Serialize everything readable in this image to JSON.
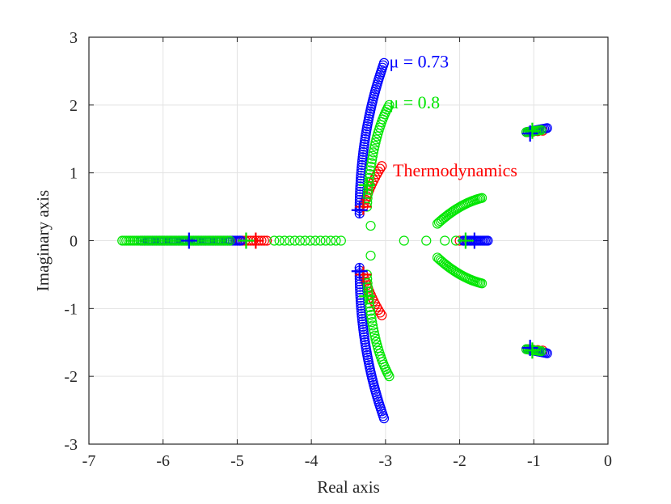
{
  "chart_data": {
    "type": "scatter",
    "xlabel": "Real axis",
    "ylabel": "Imaginary axis",
    "xlim": [
      -7,
      0
    ],
    "ylim": [
      -3,
      3
    ],
    "xticks": [
      "-7",
      "-6",
      "-5",
      "-4",
      "-3",
      "-2",
      "-1",
      "0"
    ],
    "yticks": [
      "3",
      "2",
      "1",
      "0",
      "-1",
      "-2",
      "-3"
    ],
    "grid": true,
    "annotations": [
      {
        "text": "μ = 0.73",
        "color": "#0000ff"
      },
      {
        "text": "μ = 0.8",
        "color": "#00e600"
      },
      {
        "text": "Thermodynamics",
        "color": "#ff0000"
      }
    ],
    "series": [
      {
        "color": "#ff0000",
        "marker": "circle",
        "branches": [
          {
            "kind": "line",
            "from": [
              -5.0,
              0
            ],
            "to": [
              -4.6,
              0
            ],
            "n": 12
          },
          {
            "kind": "arc",
            "from": [
              -3.3,
              0.5
            ],
            "mid": [
              -3.2,
              0.85
            ],
            "to": [
              -3.05,
              1.1
            ],
            "n": 14
          },
          {
            "kind": "arc",
            "from": [
              -3.3,
              -0.5
            ],
            "mid": [
              -3.2,
              -0.85
            ],
            "to": [
              -3.05,
              -1.1
            ],
            "n": 14
          },
          {
            "kind": "line",
            "from": [
              -2.0,
              0
            ],
            "to": [
              -1.85,
              0
            ],
            "n": 4
          },
          {
            "kind": "line",
            "from": [
              -1.08,
              1.6
            ],
            "to": [
              -0.88,
              1.62
            ],
            "n": 4
          },
          {
            "kind": "line",
            "from": [
              -1.08,
              -1.6
            ],
            "to": [
              -0.88,
              -1.62
            ],
            "n": 4
          }
        ]
      },
      {
        "color": "#0000ff",
        "marker": "circle",
        "branches": [
          {
            "kind": "line",
            "from": [
              -6.3,
              0
            ],
            "to": [
              -4.95,
              0
            ],
            "n": 60
          },
          {
            "kind": "arc",
            "from": [
              -3.35,
              0.4
            ],
            "mid": [
              -3.35,
              1.6
            ],
            "to": [
              -3.02,
              2.62
            ],
            "n": 60
          },
          {
            "kind": "arc",
            "from": [
              -3.35,
              -0.4
            ],
            "mid": [
              -3.35,
              -1.6
            ],
            "to": [
              -3.02,
              -2.62
            ],
            "n": 60
          },
          {
            "kind": "line",
            "from": [
              -1.95,
              0
            ],
            "to": [
              -1.62,
              0
            ],
            "n": 18
          },
          {
            "kind": "line",
            "from": [
              -1.1,
              1.6
            ],
            "to": [
              -0.82,
              1.66
            ],
            "n": 15
          },
          {
            "kind": "line",
            "from": [
              -1.1,
              -1.6
            ],
            "to": [
              -0.82,
              -1.66
            ],
            "n": 15
          }
        ]
      },
      {
        "color": "#00e600",
        "marker": "circle",
        "branches": [
          {
            "kind": "line",
            "from": [
              -6.55,
              0
            ],
            "to": [
              -5.1,
              0
            ],
            "n": 55
          },
          {
            "kind": "line",
            "from": [
              -4.5,
              0
            ],
            "to": [
              -3.6,
              0
            ],
            "n": 14
          },
          {
            "kind": "points",
            "pts": [
              [
                -3.2,
                0.22
              ],
              [
                -3.2,
                -0.22
              ],
              [
                -2.75,
                0
              ],
              [
                -2.45,
                0
              ],
              [
                -2.2,
                0
              ],
              [
                -2.05,
                0
              ]
            ]
          },
          {
            "kind": "arc",
            "from": [
              -3.25,
              0.5
            ],
            "mid": [
              -3.2,
              1.5
            ],
            "to": [
              -2.95,
              2.0
            ],
            "n": 32
          },
          {
            "kind": "arc",
            "from": [
              -3.25,
              -0.5
            ],
            "mid": [
              -3.2,
              -1.5
            ],
            "to": [
              -2.95,
              -2.0
            ],
            "n": 32
          },
          {
            "kind": "arc",
            "from": [
              -2.3,
              0.25
            ],
            "mid": [
              -2.0,
              0.55
            ],
            "to": [
              -1.7,
              0.63
            ],
            "n": 30
          },
          {
            "kind": "arc",
            "from": [
              -2.3,
              -0.25
            ],
            "mid": [
              -2.0,
              -0.55
            ],
            "to": [
              -1.7,
              -0.63
            ],
            "n": 30
          },
          {
            "kind": "line",
            "from": [
              -1.1,
              1.6
            ],
            "to": [
              -0.9,
              1.63
            ],
            "n": 10
          },
          {
            "kind": "line",
            "from": [
              -1.1,
              -1.6
            ],
            "to": [
              -0.9,
              -1.63
            ],
            "n": 10
          }
        ]
      }
    ],
    "crosses": [
      {
        "color": "#ff0000",
        "pts": [
          [
            -4.75,
            0
          ],
          [
            -3.3,
            0.5
          ],
          [
            -3.3,
            -0.5
          ]
        ]
      },
      {
        "color": "#0000ff",
        "pts": [
          [
            -5.65,
            0
          ],
          [
            -3.35,
            0.45
          ],
          [
            -3.35,
            -0.45
          ],
          [
            -1.8,
            0
          ],
          [
            -1.05,
            1.58
          ],
          [
            -1.05,
            -1.58
          ]
        ]
      },
      {
        "color": "#00e600",
        "pts": [
          [
            -4.88,
            0
          ],
          [
            -3.25,
            0.82
          ],
          [
            -3.25,
            -0.82
          ],
          [
            -1.92,
            0
          ],
          [
            -1.02,
            1.62
          ],
          [
            -1.02,
            -1.62
          ]
        ]
      }
    ]
  }
}
